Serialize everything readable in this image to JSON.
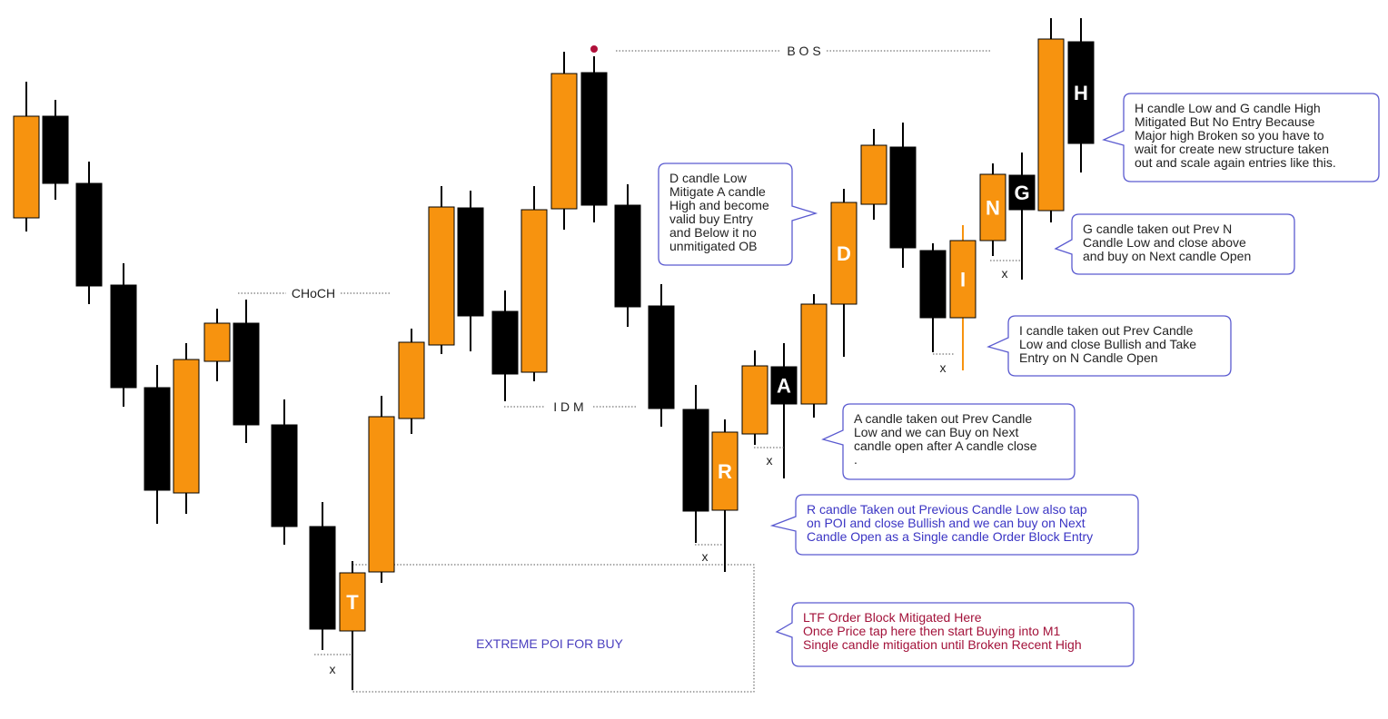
{
  "labels": {
    "bos": "B O S",
    "choch": "CHoCH",
    "idm": "I D M",
    "poi": "EXTREME POI FOR  BUY",
    "x_mark": "x"
  },
  "candle_labels": [
    "T",
    "R",
    "A",
    "D",
    "I",
    "N",
    "G",
    "H"
  ],
  "notes": [
    {
      "lines": [
        "D candle Low",
        "Mitigate A candle",
        "High and become",
        "valid buy Entry",
        "and Below it no",
        "unmitigated OB"
      ]
    },
    {
      "lines": [
        "H candle Low and G candle High",
        "Mitigated But No Entry Because",
        "Major high Broken so you have to",
        "wait for create new structure taken",
        "out and scale again entries like this."
      ]
    },
    {
      "lines": [
        "G candle taken out Prev N",
        "Candle  Low and close  above",
        "and buy on Next candle Open"
      ]
    },
    {
      "lines": [
        "I candle taken out Prev Candle",
        "Low and close Bullish and Take",
        "Entry on N Candle Open"
      ]
    },
    {
      "lines": [
        "A candle taken out Prev Candle",
        "Low and  we can Buy on Next",
        "candle open after A candle close",
        "."
      ]
    },
    {
      "lines": [
        "R candle Taken out Previous Candle Low also tap",
        "on POI and close Bullish and we can buy on Next",
        "Candle Open as a Single candle Order Block Entry"
      ]
    },
    {
      "lines": [
        "LTF Order Block Mitigated Here",
        "Once Price tap here then start Buying into M1",
        "Single candle mitigation until Broken Recent High"
      ]
    }
  ]
}
